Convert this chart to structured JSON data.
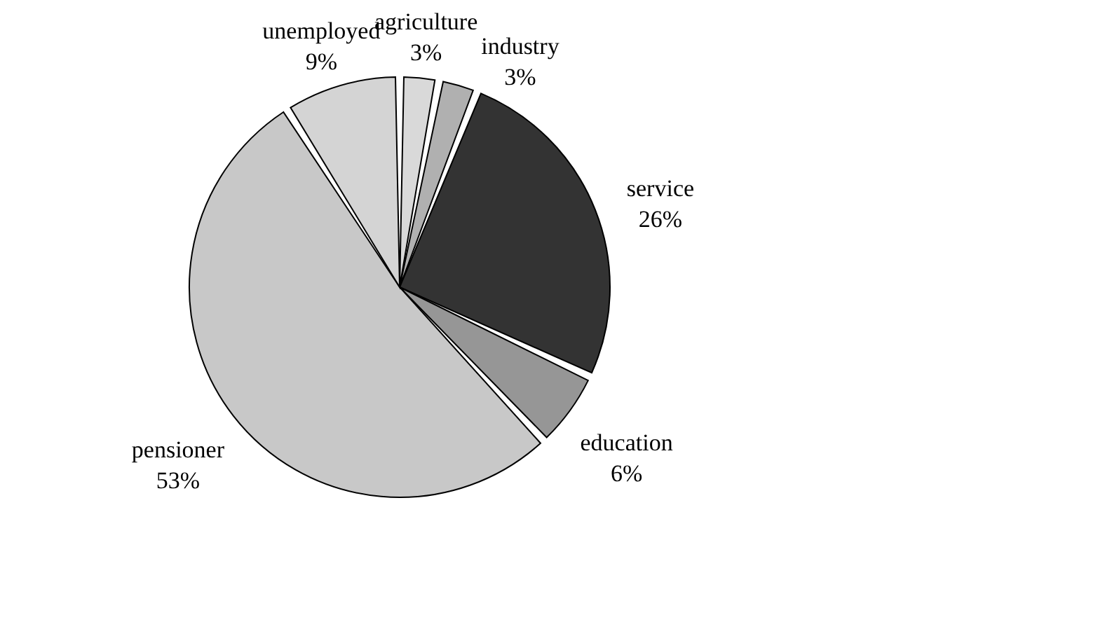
{
  "chart_data": {
    "type": "pie",
    "categories": [
      "agriculture",
      "industry",
      "service",
      "education",
      "pensioner",
      "unemployed"
    ],
    "values": [
      3,
      3,
      26,
      6,
      53,
      9
    ],
    "value_labels": [
      "3%",
      "3%",
      "26%",
      "6%",
      "53%",
      "9%"
    ],
    "colors": [
      "#d9d9d9",
      "#b0b0b0",
      "#333333",
      "#969696",
      "#c8c8c8",
      "#d4d4d4"
    ],
    "legend": false
  }
}
